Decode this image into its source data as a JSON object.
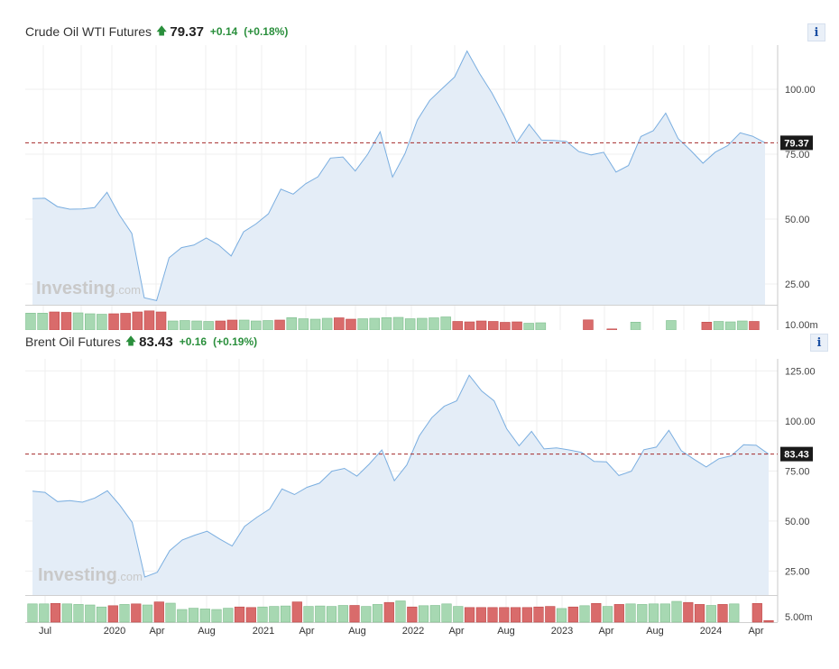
{
  "panels": [
    {
      "header": {
        "name": "Crude Oil WTI Futures",
        "price": "79.37",
        "change": "+0.14",
        "change_pct": "(+0.18%)",
        "arrow_icon": "up-arrow-icon",
        "direction_color": "#2a8f3c"
      },
      "info_label": "i",
      "watermark": {
        "brand": "Investing",
        "suffix": ".com"
      }
    },
    {
      "header": {
        "name": "Brent Oil Futures",
        "price": "83.43",
        "change": "+0.16",
        "change_pct": "(+0.19%)",
        "arrow_icon": "up-arrow-icon",
        "direction_color": "#2a8f3c"
      },
      "info_label": "i",
      "watermark": {
        "brand": "Investing",
        "suffix": ".com"
      }
    }
  ],
  "chart_data": [
    {
      "type": "area",
      "title": "Crude Oil WTI Futures",
      "x_tick_labels": [
        "Jul",
        "2020",
        "Apr",
        "Aug",
        "2021",
        "Apr",
        "Aug",
        "2022",
        "Apr",
        "Aug",
        "2023",
        "Apr",
        "Aug",
        "2024",
        "Apr"
      ],
      "y_tick_labels": [
        "25.00",
        "50.00",
        "75.00",
        "100.00"
      ],
      "ylim": [
        17,
        117
      ],
      "current_price": 79.37,
      "current_price_label": "79.37",
      "colors": {
        "line": "#7aaee0",
        "fill": "#e4edf7",
        "price_line": "#a52a2a",
        "volume_up": "#a7d8b2",
        "volume_down": "#d96b6b"
      },
      "series": [
        {
          "values": [
            57.9,
            58.0,
            54.8,
            53.8,
            53.9,
            54.4,
            60.3,
            51.6,
            44.5,
            19.7,
            18.6,
            35.1,
            39.0,
            40.0,
            42.7,
            40.0,
            35.8,
            45.1,
            48.1,
            52.0,
            61.5,
            59.6,
            63.6,
            66.3,
            73.5,
            73.9,
            68.5,
            75.0,
            83.6,
            66.2,
            75.2,
            88.1,
            95.7,
            100.3,
            104.7,
            114.7,
            106.1,
            98.6,
            89.6,
            79.5,
            86.5,
            80.4,
            80.3,
            79.9,
            76.0,
            74.7,
            75.7,
            68.1,
            70.6,
            81.8,
            84.0,
            90.8,
            81.0,
            76.5,
            71.5,
            75.8,
            78.3,
            83.2,
            81.9,
            79.4
          ]
        }
      ],
      "volume": {
        "max_label": "10.00m",
        "values": [
          0.75,
          0.75,
          0.8,
          0.78,
          0.76,
          0.72,
          0.7,
          0.72,
          0.74,
          0.8,
          0.85,
          0.8,
          0.4,
          0.42,
          0.4,
          0.38,
          0.4,
          0.44,
          0.44,
          0.4,
          0.42,
          0.44,
          0.55,
          0.5,
          0.48,
          0.52,
          0.54,
          0.48,
          0.5,
          0.52,
          0.55,
          0.56,
          0.5,
          0.52,
          0.54,
          0.58,
          0.38,
          0.36,
          0.4,
          0.38,
          0.34,
          0.36,
          0.3,
          0.32,
          0.0,
          0.0,
          0.0,
          0.45,
          0.0,
          0.05,
          0.0,
          0.35,
          0.0,
          0.0,
          0.42,
          0.0,
          0.0,
          0.35,
          0.38,
          0.36,
          0.4,
          0.38
        ],
        "up": [
          true,
          true,
          false,
          false,
          true,
          true,
          true,
          false,
          false,
          false,
          false,
          false,
          true,
          true,
          true,
          true,
          false,
          false,
          true,
          true,
          true,
          false,
          true,
          true,
          true,
          true,
          false,
          false,
          true,
          true,
          true,
          true,
          true,
          true,
          true,
          true,
          false,
          false,
          false,
          false,
          false,
          false,
          true,
          true,
          true,
          true,
          true,
          false,
          true,
          false,
          true,
          true,
          true,
          true,
          true,
          true,
          true,
          false,
          true,
          true,
          true,
          false
        ]
      }
    },
    {
      "type": "area",
      "title": "Brent Oil Futures",
      "x_tick_labels": [
        "Jul",
        "2020",
        "Apr",
        "Aug",
        "2021",
        "Apr",
        "Aug",
        "2022",
        "Apr",
        "Aug",
        "2023",
        "Apr",
        "Aug",
        "2024",
        "Apr"
      ],
      "y_tick_labels": [
        "25.00",
        "50.00",
        "75.00",
        "100.00",
        "125.00"
      ],
      "ylim": [
        13,
        131
      ],
      "current_price": 83.43,
      "current_price_label": "83.43",
      "colors": {
        "line": "#7aaee0",
        "fill": "#e4edf7",
        "price_line": "#a52a2a",
        "volume_up": "#a7d8b2",
        "volume_down": "#d96b6b"
      },
      "series": [
        {
          "values": [
            64.9,
            64.3,
            59.7,
            60.2,
            59.4,
            61.5,
            65.1,
            57.9,
            49.3,
            22.0,
            24.4,
            35.2,
            40.5,
            42.9,
            44.9,
            41.0,
            37.5,
            47.3,
            51.9,
            55.9,
            66.0,
            63.2,
            66.8,
            68.9,
            74.9,
            76.3,
            72.4,
            78.5,
            85.5,
            70.1,
            78.0,
            92.5,
            101.6,
            107.3,
            110.0,
            122.8,
            114.9,
            110.0,
            96.1,
            87.6,
            94.8,
            86.0,
            86.5,
            85.5,
            84.3,
            79.8,
            79.5,
            72.7,
            74.9,
            85.6,
            86.9,
            95.3,
            85.1,
            80.9,
            77.0,
            81.1,
            82.6,
            88.1,
            87.8,
            83.4
          ]
        }
      ],
      "volume": {
        "max_label": "5.00m",
        "values": [
          0.72,
          0.72,
          0.74,
          0.72,
          0.7,
          0.68,
          0.6,
          0.65,
          0.7,
          0.72,
          0.68,
          0.8,
          0.75,
          0.5,
          0.55,
          0.52,
          0.5,
          0.55,
          0.6,
          0.58,
          0.6,
          0.62,
          0.64,
          0.8,
          0.62,
          0.64,
          0.62,
          0.66,
          0.66,
          0.62,
          0.7,
          0.78,
          0.84,
          0.6,
          0.65,
          0.66,
          0.72,
          0.62,
          0.58,
          0.58,
          0.58,
          0.58,
          0.58,
          0.58,
          0.6,
          0.62,
          0.54,
          0.6,
          0.65,
          0.74,
          0.62,
          0.7,
          0.72,
          0.7,
          0.72,
          0.72,
          0.82,
          0.78,
          0.7,
          0.66,
          0.7,
          0.72,
          0.0,
          0.74,
          0.06
        ],
        "up": [
          true,
          true,
          false,
          true,
          true,
          true,
          true,
          false,
          true,
          false,
          true,
          false,
          true,
          true,
          true,
          true,
          true,
          true,
          false,
          false,
          true,
          true,
          true,
          false,
          true,
          true,
          true,
          true,
          false,
          true,
          true,
          false,
          true,
          false,
          true,
          true,
          true,
          true,
          false,
          false,
          false,
          false,
          false,
          false,
          false,
          false,
          true,
          false,
          true,
          false,
          true,
          false,
          true,
          true,
          true,
          true,
          true,
          false,
          false,
          true,
          false,
          true,
          true,
          false,
          false
        ]
      }
    }
  ]
}
